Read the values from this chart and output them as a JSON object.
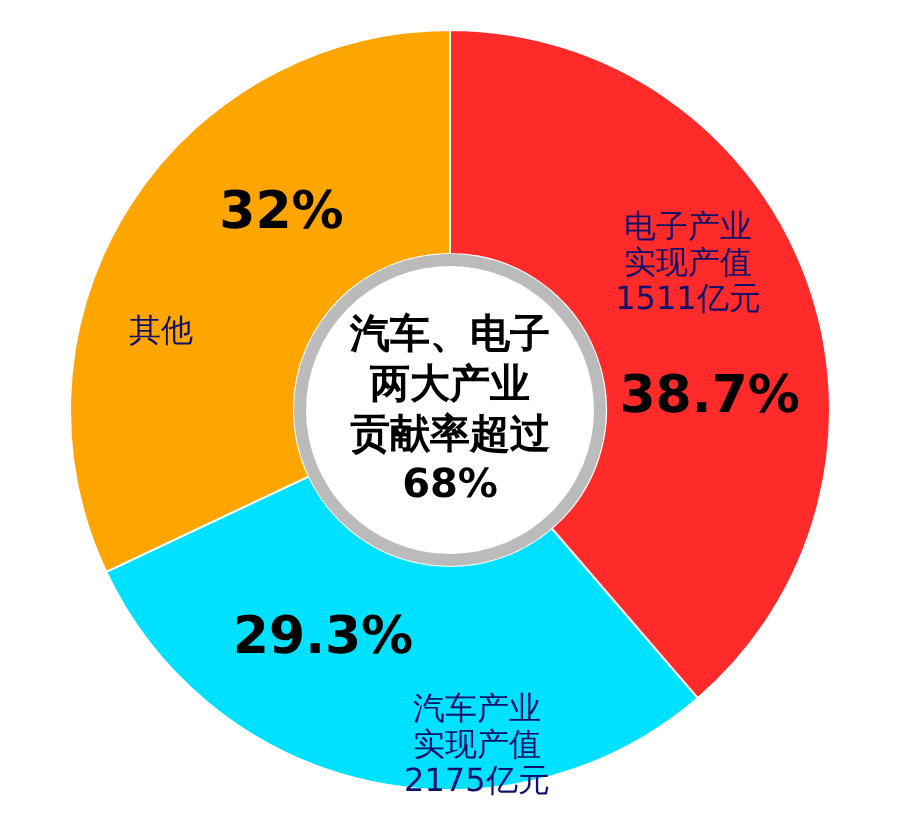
{
  "chart_data": {
    "type": "donut",
    "categories": [
      "电子产业实现产值1511亿元",
      "汽车产业实现产值2175亿元",
      "其他"
    ],
    "values": [
      38.7,
      29.3,
      32
    ],
    "colors": [
      "#ff2a2a",
      "#00e0ff",
      "#ffa500"
    ],
    "value_labels": [
      "38.7%",
      "29.3%",
      "32%"
    ],
    "annotations": [
      "汽车、电子",
      "两大产业",
      "贡献率超过",
      "68%"
    ]
  }
}
